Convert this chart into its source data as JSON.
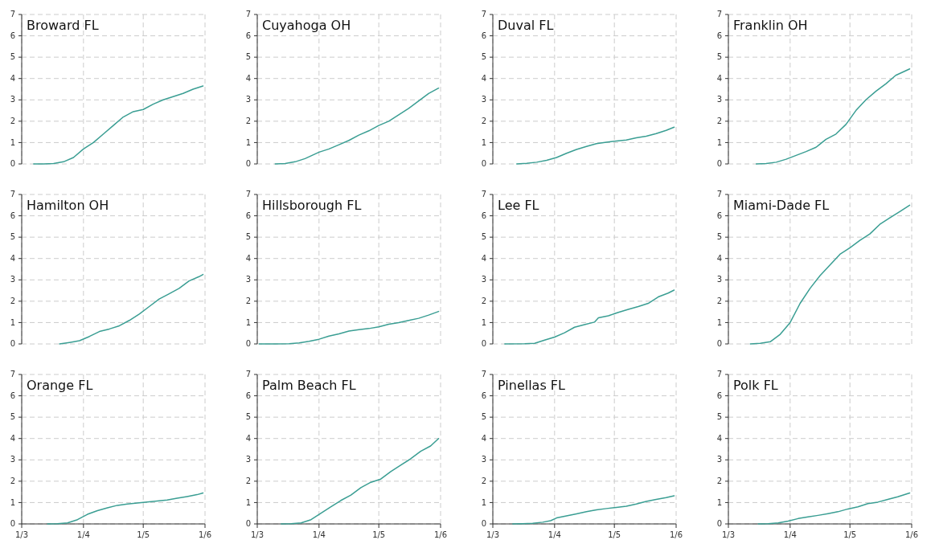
{
  "chart_data": [
    {
      "type": "line",
      "title": "Broward FL",
      "color": "#3a9e93",
      "x": [
        "--03-07",
        "--03-12",
        "--03-17",
        "--03-22",
        "--03-27",
        "--04-01",
        "--04-06",
        "--04-11",
        "--04-16",
        "--04-21",
        "--04-26",
        "--05-01",
        "--05-06",
        "--05-11",
        "--05-16",
        "--05-21",
        "--05-26",
        "--05-31"
      ],
      "values": [
        0,
        0,
        0.02,
        0.1,
        0.3,
        0.7,
        1.0,
        1.4,
        1.8,
        2.2,
        2.45,
        2.55,
        2.8,
        3.0,
        3.15,
        3.3,
        3.5,
        3.65
      ],
      "xlim": [
        "--03-01",
        "--06-01"
      ],
      "xticks": [
        {
          "value": "--03-01",
          "label": null
        },
        {
          "value": "--04-01",
          "label": null
        },
        {
          "value": "--05-01",
          "label": null
        },
        {
          "value": "--06-01",
          "label": null
        }
      ],
      "ylim": [
        0,
        7
      ],
      "yticks": [
        0,
        1,
        2,
        3,
        4,
        5,
        6,
        7
      ],
      "grid": true,
      "tick_labels": "y"
    },
    {
      "type": "line",
      "title": "Cuyahoga OH",
      "color": "#3a9e93",
      "x": [
        "--03-10",
        "--03-15",
        "--03-20",
        "--03-25",
        "--04-01",
        "--04-06",
        "--04-11",
        "--04-16",
        "--04-21",
        "--04-26",
        "--05-01",
        "--05-06",
        "--05-11",
        "--05-16",
        "--05-21",
        "--05-26",
        "--05-31"
      ],
      "values": [
        0,
        0.02,
        0.1,
        0.25,
        0.55,
        0.7,
        0.9,
        1.1,
        1.35,
        1.55,
        1.8,
        2.0,
        2.3,
        2.6,
        2.95,
        3.3,
        3.55
      ],
      "xlim": [
        "--03-01",
        "--06-01"
      ],
      "xticks": [
        {
          "value": "--03-01",
          "label": null
        },
        {
          "value": "--04-01",
          "label": null
        },
        {
          "value": "--05-01",
          "label": null
        },
        {
          "value": "--06-01",
          "label": null
        }
      ],
      "ylim": [
        0,
        7
      ],
      "yticks": [
        0,
        1,
        2,
        3,
        4,
        5,
        6,
        7
      ],
      "grid": true,
      "tick_labels": "y"
    },
    {
      "type": "line",
      "title": "Duval FL",
      "color": "#3a9e93",
      "x": [
        "--03-13",
        "--03-18",
        "--03-23",
        "--03-28",
        "--04-02",
        "--04-07",
        "--04-12",
        "--04-17",
        "--04-22",
        "--04-27",
        "--05-02",
        "--05-07",
        "--05-12",
        "--05-17",
        "--05-22",
        "--05-27",
        "--05-31"
      ],
      "values": [
        0,
        0.03,
        0.08,
        0.17,
        0.3,
        0.5,
        0.68,
        0.82,
        0.95,
        1.02,
        1.07,
        1.12,
        1.22,
        1.3,
        1.42,
        1.57,
        1.72
      ],
      "xlim": [
        "--03-01",
        "--06-01"
      ],
      "xticks": [
        {
          "value": "--03-01",
          "label": null
        },
        {
          "value": "--04-01",
          "label": null
        },
        {
          "value": "--05-01",
          "label": null
        },
        {
          "value": "--06-01",
          "label": null
        }
      ],
      "ylim": [
        0,
        7
      ],
      "yticks": [
        0,
        1,
        2,
        3,
        4,
        5,
        6,
        7
      ],
      "grid": true,
      "tick_labels": "y"
    },
    {
      "type": "line",
      "title": "Franklin OH",
      "color": "#3a9e93",
      "x": [
        "--03-15",
        "--03-20",
        "--03-25",
        "--03-30",
        "--04-04",
        "--04-09",
        "--04-14",
        "--04-19",
        "--04-24",
        "--04-29",
        "--05-04",
        "--05-09",
        "--05-14",
        "--05-19",
        "--05-24",
        "--05-31"
      ],
      "values": [
        0,
        0.02,
        0.08,
        0.22,
        0.4,
        0.58,
        0.78,
        1.15,
        1.4,
        1.85,
        2.5,
        3.0,
        3.4,
        3.75,
        4.15,
        4.45
      ],
      "xlim": [
        "--03-01",
        "--06-01"
      ],
      "xticks": [
        {
          "value": "--03-01",
          "label": null
        },
        {
          "value": "--04-01",
          "label": null
        },
        {
          "value": "--05-01",
          "label": null
        },
        {
          "value": "--06-01",
          "label": null
        }
      ],
      "ylim": [
        0,
        7
      ],
      "yticks": [
        0,
        1,
        2,
        3,
        4,
        5,
        6,
        7
      ],
      "grid": true,
      "tick_labels": "y"
    },
    {
      "type": "line",
      "title": "Hamilton OH",
      "color": "#3a9e93",
      "x": [
        "--03-20",
        "--03-25",
        "--03-30",
        "--04-04",
        "--04-09",
        "--04-14",
        "--04-19",
        "--04-24",
        "--04-29",
        "--05-04",
        "--05-09",
        "--05-14",
        "--05-19",
        "--05-24",
        "--05-29",
        "--05-31"
      ],
      "values": [
        0,
        0.07,
        0.15,
        0.35,
        0.58,
        0.7,
        0.85,
        1.1,
        1.4,
        1.75,
        2.1,
        2.35,
        2.6,
        2.95,
        3.15,
        3.25
      ],
      "xlim": [
        "--03-01",
        "--06-01"
      ],
      "xticks": [
        {
          "value": "--03-01",
          "label": null
        },
        {
          "value": "--04-01",
          "label": null
        },
        {
          "value": "--05-01",
          "label": null
        },
        {
          "value": "--06-01",
          "label": null
        }
      ],
      "ylim": [
        0,
        7
      ],
      "yticks": [
        0,
        1,
        2,
        3,
        4,
        5,
        6,
        7
      ],
      "grid": true,
      "tick_labels": "y"
    },
    {
      "type": "line",
      "title": "Hillsborough FL",
      "color": "#3a9e93",
      "x": [
        "--03-02",
        "--03-10",
        "--03-17",
        "--03-22",
        "--03-27",
        "--04-01",
        "--04-06",
        "--04-11",
        "--04-16",
        "--04-21",
        "--04-26",
        "--05-01",
        "--05-06",
        "--05-11",
        "--05-16",
        "--05-21",
        "--05-26",
        "--05-31"
      ],
      "values": [
        0,
        0,
        0.01,
        0.05,
        0.12,
        0.22,
        0.37,
        0.47,
        0.6,
        0.67,
        0.72,
        0.8,
        0.92,
        1.0,
        1.1,
        1.2,
        1.35,
        1.52
      ],
      "xlim": [
        "--03-01",
        "--06-01"
      ],
      "xticks": [
        {
          "value": "--03-01",
          "label": null
        },
        {
          "value": "--04-01",
          "label": null
        },
        {
          "value": "--05-01",
          "label": null
        },
        {
          "value": "--06-01",
          "label": null
        }
      ],
      "ylim": [
        0,
        7
      ],
      "yticks": [
        0,
        1,
        2,
        3,
        4,
        5,
        6,
        7
      ],
      "grid": true,
      "tick_labels": "y"
    },
    {
      "type": "line",
      "title": "Lee FL",
      "color": "#3a9e93",
      "x": [
        "--03-07",
        "--03-17",
        "--03-22",
        "--03-27",
        "--04-01",
        "--04-06",
        "--04-11",
        "--04-16",
        "--04-21",
        "--04-23",
        "--04-28",
        "--05-03",
        "--05-08",
        "--05-13",
        "--05-18",
        "--05-23",
        "--05-28",
        "--05-31"
      ],
      "values": [
        0,
        0.01,
        0.03,
        0.18,
        0.32,
        0.52,
        0.78,
        0.9,
        1.02,
        1.22,
        1.32,
        1.48,
        1.62,
        1.75,
        1.9,
        2.2,
        2.38,
        2.52
      ],
      "xlim": [
        "--03-01",
        "--06-01"
      ],
      "xticks": [
        {
          "value": "--03-01",
          "label": null
        },
        {
          "value": "--04-01",
          "label": null
        },
        {
          "value": "--05-01",
          "label": null
        },
        {
          "value": "--06-01",
          "label": null
        }
      ],
      "ylim": [
        0,
        7
      ],
      "yticks": [
        0,
        1,
        2,
        3,
        4,
        5,
        6,
        7
      ],
      "grid": true,
      "tick_labels": "y"
    },
    {
      "type": "line",
      "title": "Miami-Dade FL",
      "color": "#3a9e93",
      "x": [
        "--03-12",
        "--03-17",
        "--03-22",
        "--03-27",
        "--04-01",
        "--04-06",
        "--04-11",
        "--04-16",
        "--04-21",
        "--04-26",
        "--05-01",
        "--05-06",
        "--05-11",
        "--05-16",
        "--05-21",
        "--05-26",
        "--05-31"
      ],
      "values": [
        0,
        0.03,
        0.1,
        0.45,
        1.0,
        1.9,
        2.6,
        3.2,
        3.7,
        4.2,
        4.5,
        4.85,
        5.15,
        5.6,
        5.9,
        6.2,
        6.5
      ],
      "xlim": [
        "--03-01",
        "--06-01"
      ],
      "xticks": [
        {
          "value": "--03-01",
          "label": null
        },
        {
          "value": "--04-01",
          "label": null
        },
        {
          "value": "--05-01",
          "label": null
        },
        {
          "value": "--06-01",
          "label": null
        }
      ],
      "ylim": [
        0,
        7
      ],
      "yticks": [
        0,
        1,
        2,
        3,
        4,
        5,
        6,
        7
      ],
      "grid": true,
      "tick_labels": "y"
    },
    {
      "type": "line",
      "title": "Orange FL",
      "color": "#3a9e93",
      "x": [
        "--03-14",
        "--03-19",
        "--03-24",
        "--03-29",
        "--04-03",
        "--04-08",
        "--04-13",
        "--04-18",
        "--04-23",
        "--04-28",
        "--05-03",
        "--05-08",
        "--05-13",
        "--05-18",
        "--05-23",
        "--05-28",
        "--05-31"
      ],
      "values": [
        0,
        0.01,
        0.05,
        0.2,
        0.45,
        0.62,
        0.75,
        0.87,
        0.93,
        0.98,
        1.03,
        1.07,
        1.12,
        1.2,
        1.28,
        1.37,
        1.45
      ],
      "xlim": [
        "--03-01",
        "--06-01"
      ],
      "xticks": [
        {
          "value": "--03-01",
          "label": "1/3"
        },
        {
          "value": "--04-01",
          "label": "1/4"
        },
        {
          "value": "--05-01",
          "label": "1/5"
        },
        {
          "value": "--06-01",
          "label": "1/6"
        }
      ],
      "ylim": [
        0,
        7
      ],
      "yticks": [
        0,
        1,
        2,
        3,
        4,
        5,
        6,
        7
      ],
      "grid": true
    },
    {
      "type": "line",
      "title": "Palm Beach FL",
      "color": "#3a9e93",
      "x": [
        "--03-13",
        "--03-18",
        "--03-23",
        "--03-28",
        "--04-02",
        "--04-07",
        "--04-12",
        "--04-17",
        "--04-22",
        "--04-27",
        "--05-02",
        "--05-07",
        "--05-12",
        "--05-17",
        "--05-22",
        "--05-27",
        "--05-31"
      ],
      "values": [
        0,
        0.01,
        0.05,
        0.2,
        0.5,
        0.8,
        1.1,
        1.35,
        1.7,
        1.95,
        2.1,
        2.45,
        2.75,
        3.05,
        3.4,
        3.65,
        4.0
      ],
      "xlim": [
        "--03-01",
        "--06-01"
      ],
      "xticks": [
        {
          "value": "--03-01",
          "label": "1/3"
        },
        {
          "value": "--04-01",
          "label": "1/4"
        },
        {
          "value": "--05-01",
          "label": "1/5"
        },
        {
          "value": "--06-01",
          "label": "1/6"
        }
      ],
      "ylim": [
        0,
        7
      ],
      "yticks": [
        0,
        1,
        2,
        3,
        4,
        5,
        6,
        7
      ],
      "grid": true
    },
    {
      "type": "line",
      "title": "Pinellas FL",
      "color": "#3a9e93",
      "x": [
        "--03-11",
        "--03-16",
        "--03-21",
        "--03-26",
        "--03-30",
        "--04-02",
        "--04-07",
        "--04-12",
        "--04-17",
        "--04-22",
        "--04-27",
        "--05-02",
        "--05-07",
        "--05-12",
        "--05-17",
        "--05-22",
        "--05-27",
        "--05-31"
      ],
      "values": [
        0,
        0.01,
        0.03,
        0.08,
        0.15,
        0.28,
        0.38,
        0.47,
        0.57,
        0.66,
        0.72,
        0.77,
        0.83,
        0.93,
        1.05,
        1.15,
        1.23,
        1.32
      ],
      "xlim": [
        "--03-01",
        "--06-01"
      ],
      "xticks": [
        {
          "value": "--03-01",
          "label": "1/3"
        },
        {
          "value": "--04-01",
          "label": "1/4"
        },
        {
          "value": "--05-01",
          "label": "1/5"
        },
        {
          "value": "--06-01",
          "label": "1/6"
        }
      ],
      "ylim": [
        0,
        7
      ],
      "yticks": [
        0,
        1,
        2,
        3,
        4,
        5,
        6,
        7
      ],
      "grid": true
    },
    {
      "type": "line",
      "title": "Polk FL",
      "color": "#3a9e93",
      "x": [
        "--03-16",
        "--03-21",
        "--03-26",
        "--03-31",
        "--04-05",
        "--04-10",
        "--04-15",
        "--04-20",
        "--04-25",
        "--04-30",
        "--05-05",
        "--05-10",
        "--05-15",
        "--05-20",
        "--05-25",
        "--05-31"
      ],
      "values": [
        0,
        0.01,
        0.05,
        0.13,
        0.25,
        0.33,
        0.4,
        0.48,
        0.57,
        0.7,
        0.8,
        0.95,
        1.02,
        1.15,
        1.27,
        1.45
      ],
      "xlim": [
        "--03-01",
        "--06-01"
      ],
      "xticks": [
        {
          "value": "--03-01",
          "label": "1/3"
        },
        {
          "value": "--04-01",
          "label": "1/4"
        },
        {
          "value": "--05-01",
          "label": "1/5"
        },
        {
          "value": "--06-01",
          "label": "1/6"
        }
      ],
      "ylim": [
        0,
        7
      ],
      "yticks": [
        0,
        1,
        2,
        3,
        4,
        5,
        6,
        7
      ],
      "grid": true
    }
  ]
}
